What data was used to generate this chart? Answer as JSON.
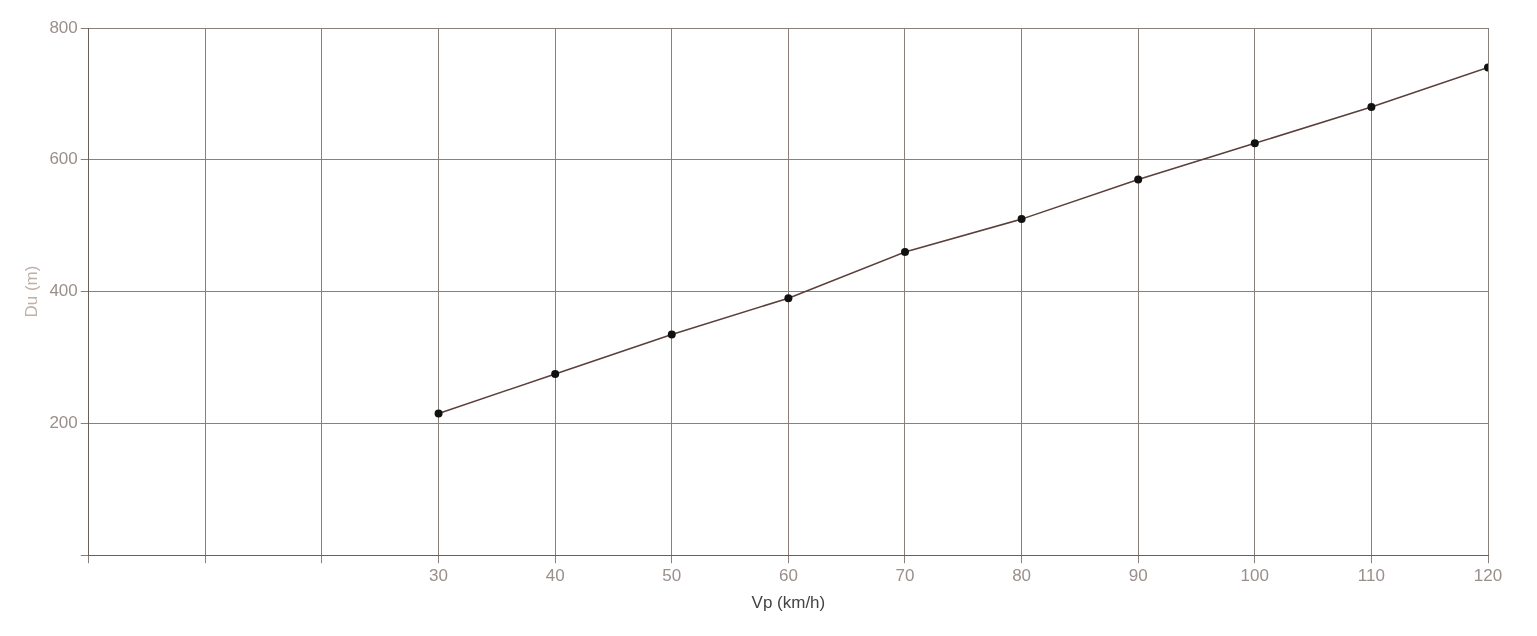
{
  "chart_data": {
    "type": "line",
    "xlabel": "Vp (km/h)",
    "ylabel": "Du (m)",
    "x": [
      30,
      40,
      50,
      60,
      70,
      80,
      90,
      100,
      110,
      120
    ],
    "series": [
      {
        "color": "#5a3f3a",
        "values": [
          215,
          275,
          335,
          390,
          460,
          510,
          570,
          625,
          680,
          740
        ]
      }
    ],
    "xlim": [
      0,
      120
    ],
    "xticks": [
      {
        "value": 0,
        "label": null
      },
      {
        "value": 10,
        "label": null
      },
      {
        "value": 20,
        "label": null
      },
      30,
      40,
      50,
      60,
      70,
      80,
      90,
      100,
      110,
      120
    ],
    "ylim": [
      0,
      800
    ],
    "yticks": [
      {
        "value": 0,
        "label": null
      },
      200,
      400,
      600,
      800
    ],
    "grid": true,
    "marker": "circle",
    "line_style": "solid",
    "legend": false
  }
}
